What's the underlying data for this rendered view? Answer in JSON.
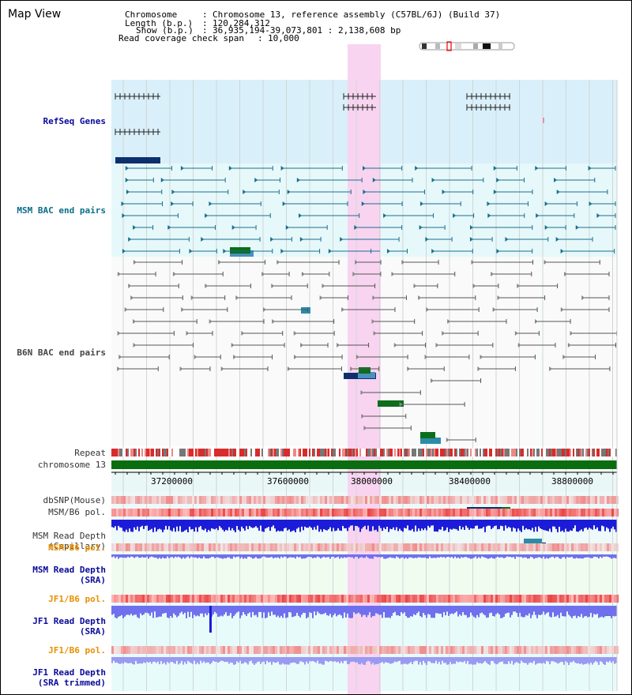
{
  "title": "Map View",
  "info": {
    "chromosome_label": "Chromosome",
    "chromosome_value": "Chromosome 13, reference assembly (C57BL/6J) (Build 37)",
    "length_label": "Length (b.p.)",
    "length_value": "120,284,312",
    "show_label": "Show (b.p.)",
    "show_value": "36,935,194-39,073,801 : 2,138,608 bp",
    "coverage_label": "Read coverage check span",
    "coverage_value": "10,000"
  },
  "tracks": {
    "refseq": "RefSeq Genes",
    "msm_bac": "MSM BAC end pairs",
    "b6n_bac": "B6N BAC end pairs",
    "repeat": "Repeat",
    "chromosome": "chromosome 13",
    "dbsnp": "dbSNP(Mouse)",
    "msm_b6_pol_1": "MSM/B6 pol.",
    "msm_depth_cap_1": "MSM Read Depth",
    "msm_depth_cap_2": "(Capillary)",
    "msm_b6_pol_2": "MSM/B6 pol.",
    "msm_depth_sra_1": "MSM Read Depth",
    "msm_depth_sra_2": "(SRA)",
    "jf1_b6_pol_1": "JF1/B6 pol.",
    "jf1_depth_sra_1": "JF1 Read Depth",
    "jf1_depth_sra_2": "(SRA)",
    "jf1_b6_pol_2": "JF1/B6 pol.",
    "jf1_depth_trim_1": "JF1 Read Depth",
    "jf1_depth_trim_2": "(SRA trimmed)"
  },
  "ruler": {
    "ticks": [
      "37200000",
      "37600000",
      "38000000",
      "38400000",
      "38800000"
    ]
  },
  "colors": {
    "highlight": "#f8d4f0",
    "refseq_bg": "#d9f0fa",
    "msm_bg": "#e6f8fa",
    "gene_navy": "#0d2f6e",
    "gene_blue": "#4a8fbf",
    "gene_teal": "#2b8ca8",
    "gene_green": "#0a6e1a",
    "msm_pair": "#1a6f8c",
    "b6n_pair": "#555555",
    "chromosome_bar": "#0a6e10",
    "depth_blue": "#1c1cd8",
    "depth_light": "#7070ee"
  }
}
